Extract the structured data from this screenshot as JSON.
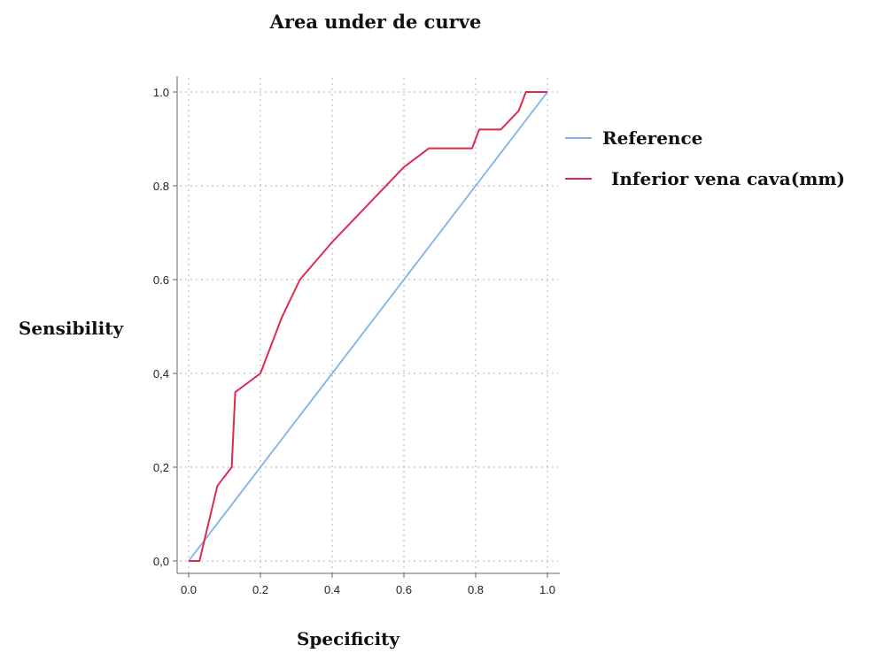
{
  "chart_data": {
    "type": "line",
    "title": "Area under de curve",
    "xlabel": "Specificity",
    "ylabel": "Sensibility",
    "xlim": [
      0,
      1
    ],
    "ylim": [
      0,
      1
    ],
    "x_ticks": [
      "0.0",
      "0.2",
      "0.4",
      "0.6",
      "0.8",
      "1.0"
    ],
    "y_ticks": [
      "0,0",
      "0,2",
      "0,4",
      "0.6",
      "0.8",
      "1.0"
    ],
    "grid": true,
    "legend_position": "right",
    "series": [
      {
        "name": "Reference",
        "color": "#7fb2ea",
        "points": [
          [
            0,
            0
          ],
          [
            1,
            1
          ]
        ]
      },
      {
        "name": "Inferior vena cava(mm)",
        "color": "#e0294f",
        "points": [
          [
            0.0,
            0.0
          ],
          [
            0.03,
            0.0
          ],
          [
            0.08,
            0.16
          ],
          [
            0.12,
            0.2
          ],
          [
            0.13,
            0.36
          ],
          [
            0.2,
            0.4
          ],
          [
            0.26,
            0.52
          ],
          [
            0.31,
            0.6
          ],
          [
            0.4,
            0.68
          ],
          [
            0.6,
            0.84
          ],
          [
            0.67,
            0.88
          ],
          [
            0.79,
            0.88
          ],
          [
            0.81,
            0.92
          ],
          [
            0.87,
            0.92
          ],
          [
            0.92,
            0.96
          ],
          [
            0.94,
            1.0
          ],
          [
            1.0,
            1.0
          ]
        ]
      }
    ]
  }
}
